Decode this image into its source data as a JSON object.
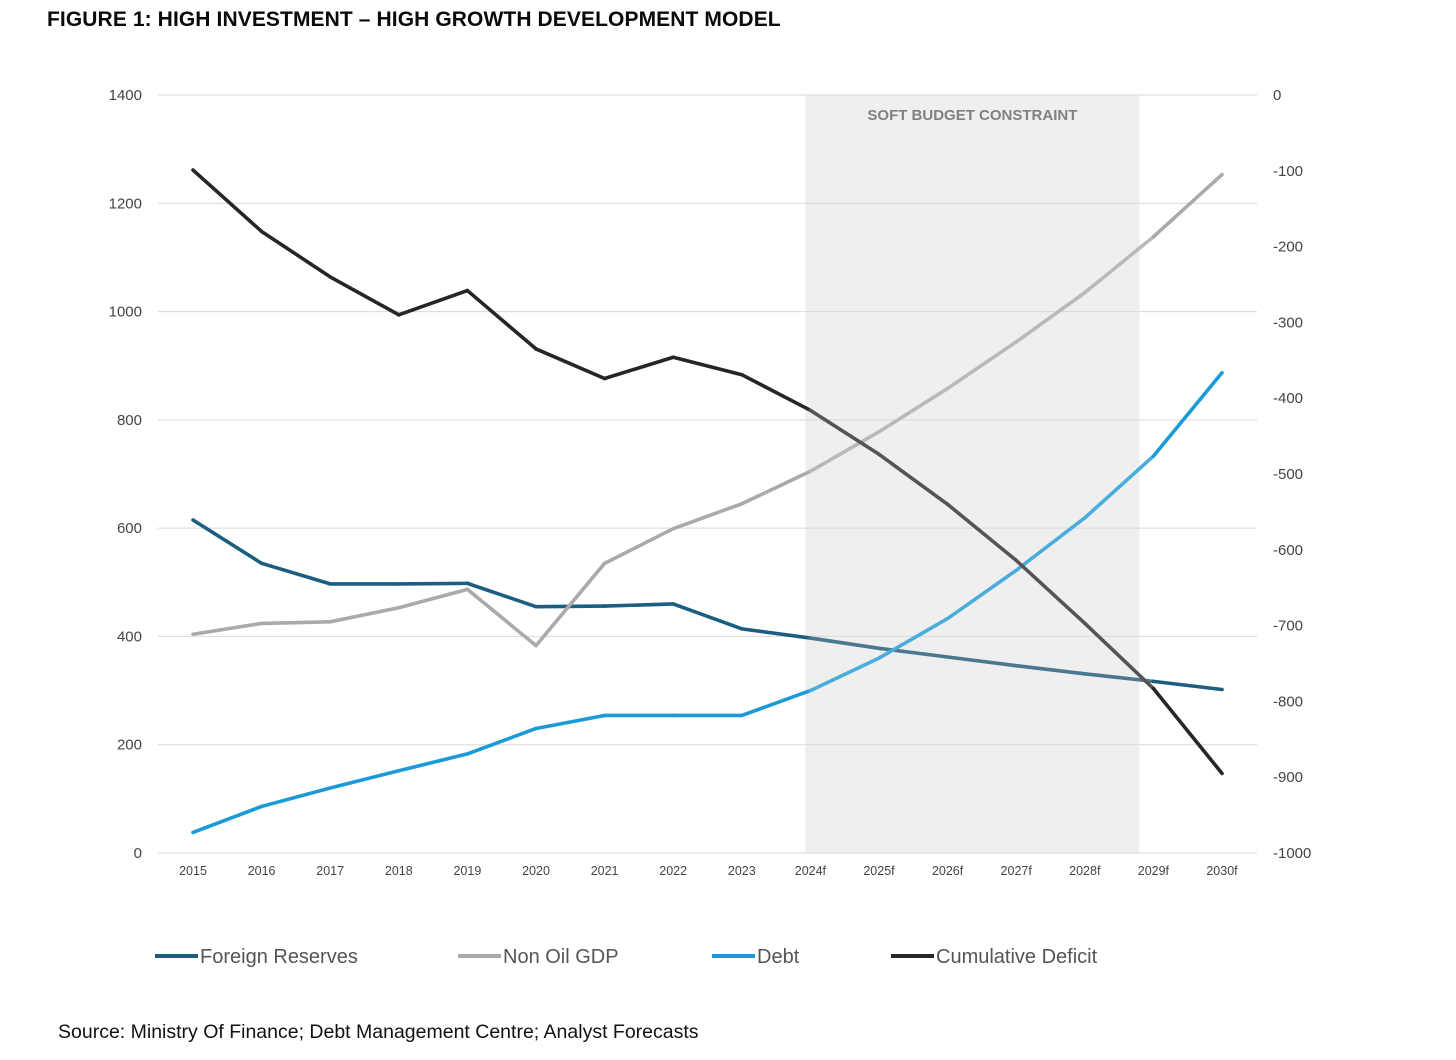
{
  "title": "FIGURE 1: HIGH INVESTMENT – HIGH GROWTH DEVELOPMENT MODEL",
  "source": "Source: Ministry Of Finance; Debt Management Centre; Analyst Forecasts",
  "chart_data": {
    "type": "line",
    "categories": [
      "2015",
      "2016",
      "2017",
      "2018",
      "2019",
      "2020",
      "2021",
      "2022",
      "2023",
      "2024f",
      "2025f",
      "2026f",
      "2027f",
      "2028f",
      "2029f",
      "2030f"
    ],
    "y_left": {
      "min": 0,
      "max": 1400,
      "ticks": [
        "0",
        "200",
        "400",
        "600",
        "800",
        "1000",
        "1200",
        "1400"
      ]
    },
    "y_right": {
      "min": -1000,
      "max": 0,
      "ticks": [
        "-1000",
        "-900",
        "-800",
        "-700",
        "-600",
        "-500",
        "-400",
        "-300",
        "-200",
        "-100",
        "0"
      ]
    },
    "grid": true,
    "shaded_region": {
      "from": "2024f",
      "to": "2029f",
      "label": "SOFT BUDGET CONSTRAINT",
      "color": "#efefef"
    },
    "legend_position": "bottom",
    "series": [
      {
        "name": "Foreign Reserves",
        "axis": "left",
        "color": "#1b5e80",
        "forecast_color": "#4a7890",
        "values": [
          615,
          535,
          497,
          497,
          498,
          455,
          456,
          460,
          414,
          397,
          378,
          362,
          346,
          331,
          317,
          302
        ]
      },
      {
        "name": "Non Oil GDP",
        "axis": "left",
        "color": "#aaaaaa",
        "forecast_color": "#b9b9b9",
        "values": [
          404,
          424,
          427,
          453,
          487,
          383,
          535,
          599,
          645,
          705,
          778,
          858,
          944,
          1035,
          1138,
          1253
        ]
      },
      {
        "name": "Debt",
        "axis": "left",
        "color": "#1a9bd7",
        "forecast_color": "#4aaddc",
        "values": [
          38,
          86,
          120,
          152,
          183,
          230,
          254,
          254,
          254,
          300,
          360,
          433,
          522,
          619,
          733,
          887
        ]
      },
      {
        "name": "Cumulative Deficit",
        "axis": "right",
        "color": "#262626",
        "forecast_color": "#555555",
        "values": [
          -99,
          -180,
          -240,
          -290,
          -258,
          -335,
          -374,
          -346,
          -369,
          -416,
          -474,
          -540,
          -614,
          -697,
          -783,
          -895
        ]
      }
    ]
  }
}
